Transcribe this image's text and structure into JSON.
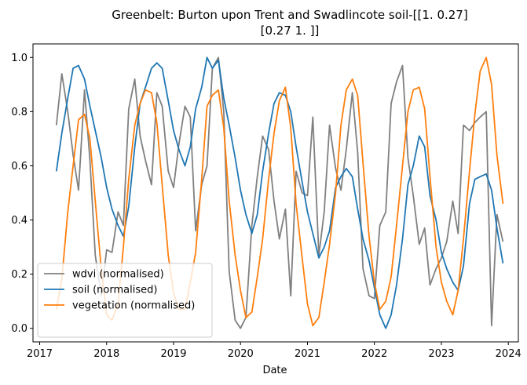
{
  "chart_data": {
    "type": "line",
    "title_line1": "Greenbelt: Burton upon Trent and Swadlincote soil-[[1.   0.27]",
    "title_line2": "[0.27 1.  ]]",
    "xlabel": "Date",
    "ylabel": "",
    "xlim": [
      2016.9,
      2024.15
    ],
    "ylim": [
      -0.05,
      1.05
    ],
    "x_ticks": [
      2017,
      2018,
      2019,
      2020,
      2021,
      2022,
      2023,
      2024
    ],
    "x_tick_labels": [
      "2017",
      "2018",
      "2019",
      "2020",
      "2021",
      "2022",
      "2023",
      "2024"
    ],
    "y_ticks": [
      0.0,
      0.2,
      0.4,
      0.6,
      0.8,
      1.0
    ],
    "y_tick_labels": [
      "0.0",
      "0.2",
      "0.4",
      "0.6",
      "0.8",
      "1.0"
    ],
    "grid": false,
    "legend_position": "lower-left",
    "series": [
      {
        "name": "wdvi (normalised)",
        "color": "#808080",
        "x": [
          2017.25,
          2017.33,
          2017.42,
          2017.5,
          2017.58,
          2017.67,
          2017.75,
          2017.83,
          2017.92,
          2018.0,
          2018.08,
          2018.17,
          2018.25,
          2018.33,
          2018.42,
          2018.5,
          2018.58,
          2018.67,
          2018.75,
          2018.83,
          2018.92,
          2019.0,
          2019.08,
          2019.17,
          2019.25,
          2019.33,
          2019.42,
          2019.5,
          2019.58,
          2019.67,
          2019.75,
          2019.83,
          2019.92,
          2020.0,
          2020.08,
          2020.17,
          2020.25,
          2020.33,
          2020.42,
          2020.5,
          2020.58,
          2020.67,
          2020.75,
          2020.83,
          2020.92,
          2021.0,
          2021.08,
          2021.17,
          2021.25,
          2021.33,
          2021.42,
          2021.5,
          2021.58,
          2021.67,
          2021.75,
          2021.83,
          2021.92,
          2022.0,
          2022.08,
          2022.17,
          2022.25,
          2022.33,
          2022.42,
          2022.5,
          2022.58,
          2022.67,
          2022.75,
          2022.83,
          2022.92,
          2023.0,
          2023.08,
          2023.17,
          2023.25,
          2023.33,
          2023.42,
          2023.5,
          2023.58,
          2023.67,
          2023.75,
          2023.83,
          2023.92
        ],
        "y": [
          0.75,
          0.94,
          0.8,
          0.64,
          0.51,
          0.88,
          0.62,
          0.27,
          0.12,
          0.29,
          0.28,
          0.43,
          0.38,
          0.81,
          0.92,
          0.71,
          0.62,
          0.53,
          0.87,
          0.82,
          0.58,
          0.52,
          0.68,
          0.82,
          0.78,
          0.36,
          0.53,
          0.6,
          0.96,
          1.0,
          0.8,
          0.21,
          0.03,
          0.0,
          0.04,
          0.38,
          0.56,
          0.71,
          0.66,
          0.47,
          0.33,
          0.44,
          0.12,
          0.58,
          0.5,
          0.49,
          0.78,
          0.27,
          0.43,
          0.75,
          0.59,
          0.51,
          0.66,
          0.87,
          0.65,
          0.22,
          0.12,
          0.11,
          0.38,
          0.43,
          0.83,
          0.91,
          0.97,
          0.63,
          0.49,
          0.31,
          0.37,
          0.16,
          0.22,
          0.26,
          0.32,
          0.47,
          0.35,
          0.75,
          0.73,
          0.76,
          0.78,
          0.8,
          0.01,
          0.42,
          0.32
        ]
      },
      {
        "name": "soil (normalised)",
        "color": "#1f77b4",
        "x": [
          2017.25,
          2017.33,
          2017.42,
          2017.5,
          2017.58,
          2017.67,
          2017.75,
          2017.83,
          2017.92,
          2018.0,
          2018.08,
          2018.17,
          2018.25,
          2018.33,
          2018.42,
          2018.5,
          2018.58,
          2018.67,
          2018.75,
          2018.83,
          2018.92,
          2019.0,
          2019.08,
          2019.17,
          2019.25,
          2019.33,
          2019.42,
          2019.5,
          2019.58,
          2019.67,
          2019.75,
          2019.83,
          2019.92,
          2020.0,
          2020.08,
          2020.17,
          2020.25,
          2020.33,
          2020.42,
          2020.5,
          2020.58,
          2020.67,
          2020.75,
          2020.83,
          2020.92,
          2021.0,
          2021.08,
          2021.17,
          2021.25,
          2021.33,
          2021.42,
          2021.5,
          2021.58,
          2021.67,
          2021.75,
          2021.83,
          2021.92,
          2022.0,
          2022.08,
          2022.17,
          2022.25,
          2022.33,
          2022.42,
          2022.5,
          2022.58,
          2022.67,
          2022.75,
          2022.83,
          2022.92,
          2023.0,
          2023.08,
          2023.17,
          2023.25,
          2023.33,
          2023.42,
          2023.5,
          2023.58,
          2023.67,
          2023.75,
          2023.83,
          2023.92
        ],
        "y": [
          0.58,
          0.72,
          0.85,
          0.96,
          0.97,
          0.92,
          0.82,
          0.73,
          0.63,
          0.52,
          0.44,
          0.38,
          0.34,
          0.45,
          0.67,
          0.83,
          0.89,
          0.96,
          0.98,
          0.96,
          0.84,
          0.73,
          0.66,
          0.6,
          0.67,
          0.81,
          0.89,
          1.0,
          0.96,
          0.99,
          0.85,
          0.75,
          0.63,
          0.51,
          0.42,
          0.35,
          0.42,
          0.58,
          0.72,
          0.83,
          0.87,
          0.86,
          0.8,
          0.67,
          0.54,
          0.43,
          0.35,
          0.26,
          0.3,
          0.36,
          0.52,
          0.56,
          0.59,
          0.56,
          0.44,
          0.33,
          0.25,
          0.15,
          0.05,
          0.0,
          0.05,
          0.16,
          0.33,
          0.53,
          0.6,
          0.71,
          0.67,
          0.49,
          0.4,
          0.28,
          0.22,
          0.17,
          0.14,
          0.23,
          0.46,
          0.55,
          0.56,
          0.57,
          0.51,
          0.37,
          0.24
        ]
      },
      {
        "name": "vegetation (normalised)",
        "color": "#ff7f0e",
        "x": [
          2017.25,
          2017.33,
          2017.42,
          2017.5,
          2017.58,
          2017.67,
          2017.75,
          2017.83,
          2017.92,
          2018.0,
          2018.08,
          2018.17,
          2018.25,
          2018.33,
          2018.42,
          2018.5,
          2018.58,
          2018.67,
          2018.75,
          2018.83,
          2018.92,
          2019.0,
          2019.08,
          2019.17,
          2019.25,
          2019.33,
          2019.42,
          2019.5,
          2019.58,
          2019.67,
          2019.75,
          2019.83,
          2019.92,
          2020.0,
          2020.08,
          2020.17,
          2020.25,
          2020.33,
          2020.42,
          2020.5,
          2020.58,
          2020.67,
          2020.75,
          2020.83,
          2020.92,
          2021.0,
          2021.08,
          2021.17,
          2021.25,
          2021.33,
          2021.42,
          2021.5,
          2021.58,
          2021.67,
          2021.75,
          2021.83,
          2021.92,
          2022.0,
          2022.08,
          2022.17,
          2022.25,
          2022.33,
          2022.42,
          2022.5,
          2022.58,
          2022.67,
          2022.75,
          2022.83,
          2022.92,
          2023.0,
          2023.08,
          2023.17,
          2023.25,
          2023.33,
          2023.42,
          2023.5,
          2023.58,
          2023.67,
          2023.75,
          2023.83,
          2023.92
        ],
        "y": [
          0.07,
          0.18,
          0.43,
          0.6,
          0.77,
          0.79,
          0.7,
          0.47,
          0.22,
          0.05,
          0.03,
          0.09,
          0.3,
          0.55,
          0.75,
          0.83,
          0.88,
          0.87,
          0.76,
          0.53,
          0.27,
          0.13,
          0.07,
          0.07,
          0.17,
          0.28,
          0.55,
          0.82,
          0.86,
          0.88,
          0.74,
          0.47,
          0.27,
          0.14,
          0.04,
          0.06,
          0.19,
          0.33,
          0.55,
          0.72,
          0.84,
          0.89,
          0.74,
          0.46,
          0.26,
          0.09,
          0.01,
          0.04,
          0.17,
          0.31,
          0.5,
          0.75,
          0.88,
          0.92,
          0.86,
          0.61,
          0.34,
          0.17,
          0.07,
          0.1,
          0.19,
          0.38,
          0.6,
          0.8,
          0.88,
          0.89,
          0.81,
          0.56,
          0.3,
          0.17,
          0.1,
          0.05,
          0.14,
          0.33,
          0.58,
          0.79,
          0.95,
          1.0,
          0.9,
          0.64,
          0.46
        ]
      }
    ]
  }
}
